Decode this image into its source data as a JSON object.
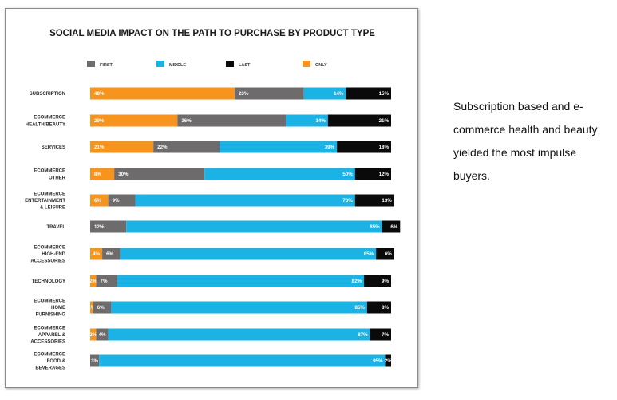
{
  "chart_data": {
    "type": "bar",
    "orientation": "horizontal",
    "stacked": true,
    "title": "SOCIAL MEDIA IMPACT ON THE PATH TO PURCHASE BY PRODUCT TYPE",
    "xlabel": "",
    "ylabel": "",
    "xlim": [
      0,
      100
    ],
    "grid": false,
    "legend_position": "top",
    "legend": [
      {
        "name": "FIRST",
        "color": "#6d6b6b"
      },
      {
        "name": "MIDDLE",
        "color": "#1bb3e6"
      },
      {
        "name": "LAST",
        "color": "#0a0a0a"
      },
      {
        "name": "ONLY",
        "color": "#f7941d"
      }
    ],
    "stack_order": [
      "ONLY",
      "FIRST",
      "MIDDLE",
      "LAST"
    ],
    "categories": [
      [
        "SUBSCRIPTION"
      ],
      [
        "ECOMMERCE",
        "HEALTH/BEAUTY"
      ],
      [
        "SERVICES"
      ],
      [
        "ECOMMERCE",
        "OTHER"
      ],
      [
        "ECOMMERCE",
        "ENTERTAINMENT",
        "& LEISURE"
      ],
      [
        "TRAVEL"
      ],
      [
        "ECOMMERCE",
        "HIGH-END",
        "ACCESSORIES"
      ],
      [
        "TECHNOLOGY"
      ],
      [
        "ECOMMERCE",
        "HOME",
        "FURNISHING"
      ],
      [
        "ECOMMERCE",
        "APPAREL &",
        "ACCESSORIES"
      ],
      [
        "ECOMMERCE",
        "FOOD &",
        "BEVERAGES"
      ]
    ],
    "series": [
      {
        "name": "ONLY",
        "color": "#f7941d",
        "values": [
          48,
          29,
          21,
          8,
          6,
          0,
          4,
          2,
          1,
          2,
          0
        ],
        "labels": [
          "48%",
          "29%",
          "21%",
          "8%",
          "6%",
          "",
          "4%",
          "2%",
          "1%",
          "2%",
          ""
        ]
      },
      {
        "name": "FIRST",
        "color": "#6d6b6b",
        "values": [
          23,
          36,
          22,
          30,
          9,
          12,
          6,
          7,
          6,
          4,
          3
        ],
        "labels": [
          "23%",
          "36%",
          "22%",
          "30%",
          "9%",
          "12%",
          "6%",
          "7%",
          "6%",
          "4%",
          "3%"
        ]
      },
      {
        "name": "MIDDLE",
        "color": "#1bb3e6",
        "values": [
          14,
          14,
          39,
          50,
          73,
          85,
          85,
          82,
          85,
          87,
          95
        ],
        "labels": [
          "14%",
          "14%",
          "39%",
          "50%",
          "73%",
          "85%",
          "85%",
          "82%",
          "85%",
          "87%",
          "95%"
        ]
      },
      {
        "name": "LAST",
        "color": "#0a0a0a",
        "values": [
          15,
          21,
          18,
          12,
          13,
          6,
          6,
          9,
          8,
          7,
          2
        ],
        "labels": [
          "15%",
          "21%",
          "18%",
          "12%",
          "13%",
          "6%",
          "6%",
          "9%",
          "8%",
          "7%",
          "2%"
        ]
      }
    ]
  },
  "caption": {
    "text": "Subscription based and e-commerce health and beauty yielded the most impulse buyers."
  }
}
